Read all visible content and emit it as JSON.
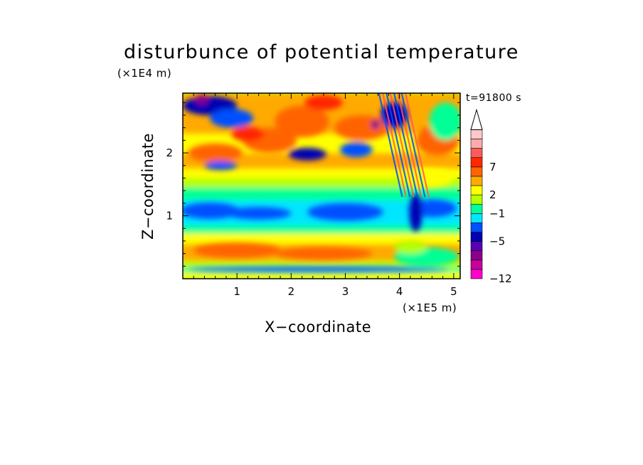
{
  "chart_data": {
    "type": "heatmap",
    "title": "disturbunce of potential temperature",
    "xlabel": "X−coordinate",
    "ylabel": "Z−coordinate",
    "x_unit": "(×1E5 m)",
    "z_unit": "(×1E4 m)",
    "time_label": "t=91800 s",
    "xlim": [
      0,
      5.12
    ],
    "ylim": [
      0,
      2.95
    ],
    "x_ticks": [
      {
        "value": 1,
        "label": "1"
      },
      {
        "value": 2,
        "label": "2"
      },
      {
        "value": 3,
        "label": "3"
      },
      {
        "value": 4,
        "label": "4"
      },
      {
        "value": 5,
        "label": "5"
      }
    ],
    "y_ticks": [
      {
        "value": 1,
        "label": "1"
      },
      {
        "value": 2,
        "label": "2"
      }
    ],
    "colorbar": {
      "open_top": true,
      "levels": [
        {
          "color": "#ff00cc"
        },
        {
          "color": "#c8009b"
        },
        {
          "color": "#8b008b"
        },
        {
          "color": "#5a00b4"
        },
        {
          "color": "#0000b4"
        },
        {
          "color": "#0050ff"
        },
        {
          "color": "#00e6ff"
        },
        {
          "color": "#00ff96"
        },
        {
          "color": "#b4ff00"
        },
        {
          "color": "#ffff00"
        },
        {
          "color": "#ffaa00"
        },
        {
          "color": "#ff6400"
        },
        {
          "color": "#ff2800"
        },
        {
          "color": "#ff5a5a"
        },
        {
          "color": "#ffaaaa"
        },
        {
          "color": "#ffc8c8"
        }
      ],
      "labels": [
        {
          "value": -12,
          "label": "−12"
        },
        {
          "value": -5,
          "label": "−5"
        },
        {
          "value": -1,
          "label": "−1"
        },
        {
          "value": 2,
          "label": "2"
        },
        {
          "value": 7,
          "label": "7"
        }
      ]
    },
    "field_bands": [
      {
        "z": [
          0.0,
          0.1
        ],
        "level": 9
      },
      {
        "z": [
          0.1,
          0.17
        ],
        "level": 7
      },
      {
        "z": [
          0.17,
          0.28
        ],
        "level": 8
      },
      {
        "z": [
          0.28,
          0.55
        ],
        "level": 10
      },
      {
        "z": [
          0.55,
          0.72
        ],
        "level": 9
      },
      {
        "z": [
          0.72,
          0.85
        ],
        "level": 7
      },
      {
        "z": [
          0.85,
          1.25
        ],
        "level": 6
      },
      {
        "z": [
          1.25,
          1.45
        ],
        "level": 7
      },
      {
        "z": [
          1.45,
          1.6
        ],
        "level": 8
      },
      {
        "z": [
          1.6,
          1.75
        ],
        "level": 9
      },
      {
        "z": [
          1.75,
          2.0
        ],
        "level": 10
      },
      {
        "z": [
          2.0,
          2.3
        ],
        "level": 9
      },
      {
        "z": [
          2.3,
          2.95
        ],
        "level": 10
      }
    ],
    "field_blobs": [
      {
        "x": 0.5,
        "z": 1.08,
        "rx": 0.55,
        "rz": 0.13,
        "level": 5
      },
      {
        "x": 1.4,
        "z": 1.04,
        "rx": 0.6,
        "rz": 0.1,
        "level": 5
      },
      {
        "x": 3.0,
        "z": 1.06,
        "rx": 0.7,
        "rz": 0.14,
        "level": 5
      },
      {
        "x": 4.6,
        "z": 1.12,
        "rx": 0.45,
        "rz": 0.14,
        "level": 5
      },
      {
        "x": 4.3,
        "z": 1.05,
        "rx": 0.12,
        "rz": 0.3,
        "level": 4
      },
      {
        "x": 1.0,
        "z": 0.45,
        "rx": 0.8,
        "rz": 0.12,
        "level": 11
      },
      {
        "x": 2.6,
        "z": 0.4,
        "rx": 0.9,
        "rz": 0.1,
        "level": 11
      },
      {
        "x": 4.5,
        "z": 0.35,
        "rx": 0.6,
        "rz": 0.15,
        "level": 7
      },
      {
        "x": 4.2,
        "z": 0.5,
        "rx": 0.3,
        "rz": 0.1,
        "level": 8
      },
      {
        "x": 2.5,
        "z": 0.15,
        "rx": 2.4,
        "rz": 0.04,
        "level": 5
      },
      {
        "x": 0.6,
        "z": 2.0,
        "rx": 0.5,
        "rz": 0.15,
        "level": 11
      },
      {
        "x": 1.6,
        "z": 2.2,
        "rx": 0.5,
        "rz": 0.2,
        "level": 11
      },
      {
        "x": 2.2,
        "z": 2.5,
        "rx": 0.5,
        "rz": 0.25,
        "level": 11
      },
      {
        "x": 3.3,
        "z": 2.4,
        "rx": 0.5,
        "rz": 0.2,
        "level": 11
      },
      {
        "x": 4.7,
        "z": 2.2,
        "rx": 0.4,
        "rz": 0.25,
        "level": 11
      },
      {
        "x": 0.5,
        "z": 2.75,
        "rx": 0.5,
        "rz": 0.15,
        "level": 4
      },
      {
        "x": 0.9,
        "z": 2.55,
        "rx": 0.4,
        "rz": 0.15,
        "level": 5
      },
      {
        "x": 2.3,
        "z": 1.98,
        "rx": 0.35,
        "rz": 0.1,
        "level": 4
      },
      {
        "x": 3.2,
        "z": 2.05,
        "rx": 0.3,
        "rz": 0.12,
        "level": 5
      },
      {
        "x": 0.7,
        "z": 1.8,
        "rx": 0.3,
        "rz": 0.07,
        "level": 5
      },
      {
        "x": 3.9,
        "z": 2.6,
        "rx": 0.25,
        "rz": 0.2,
        "level": 4
      },
      {
        "x": 2.6,
        "z": 2.8,
        "rx": 0.35,
        "rz": 0.12,
        "level": 12
      },
      {
        "x": 1.2,
        "z": 2.3,
        "rx": 0.3,
        "rz": 0.12,
        "level": 12
      },
      {
        "x": 4.85,
        "z": 2.5,
        "rx": 0.3,
        "rz": 0.3,
        "level": 7
      },
      {
        "x": 4.5,
        "z": 1.6,
        "rx": 0.5,
        "rz": 0.15,
        "level": 9
      },
      {
        "x": 0.35,
        "z": 2.85,
        "rx": 0.12,
        "rz": 0.08,
        "level": 2
      },
      {
        "x": 3.55,
        "z": 2.45,
        "rx": 0.08,
        "rz": 0.08,
        "level": 2
      }
    ]
  }
}
